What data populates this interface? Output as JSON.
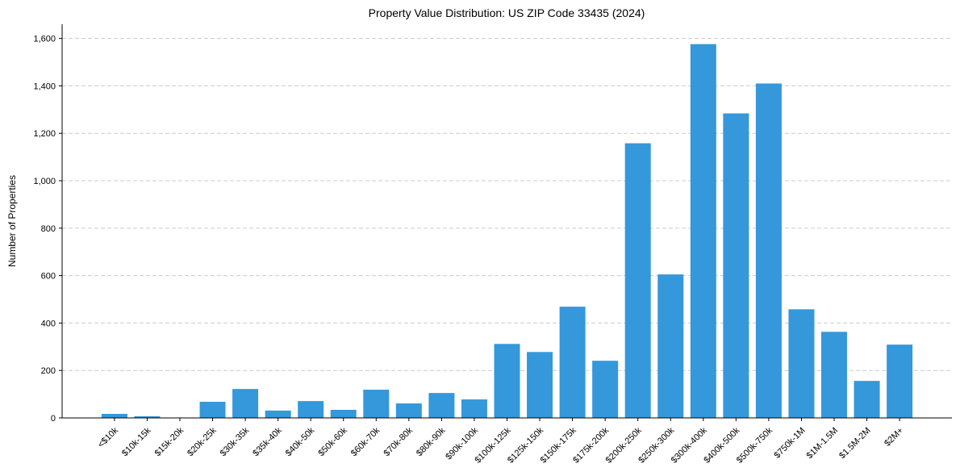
{
  "chart_data": {
    "type": "bar",
    "title": "Property Value Distribution: US ZIP Code 33435 (2024)",
    "xlabel": "",
    "ylabel": "Number of Properties",
    "ylim": [
      0,
      1660
    ],
    "yticks": [
      0,
      200,
      400,
      600,
      800,
      1000,
      1200,
      1400,
      1600
    ],
    "ytick_labels": [
      "0",
      "200",
      "400",
      "600",
      "800",
      "1,000",
      "1,200",
      "1,400",
      "1,600"
    ],
    "grid": "y-dashed",
    "bar_color": "#3498db",
    "categories": [
      "<$10k",
      "$10k-15k",
      "$15k-20k",
      "$20k-25k",
      "$30k-35k",
      "$35k-40k",
      "$40k-50k",
      "$50k-60k",
      "$60k-70k",
      "$70k-80k",
      "$80k-90k",
      "$90k-100k",
      "$100k-125k",
      "$125k-150k",
      "$150k-175k",
      "$175k-200k",
      "$200k-250k",
      "$250k-300k",
      "$300k-400k",
      "$400k-500k",
      "$500k-750k",
      "$750k-1M",
      "$1M-1.5M",
      "$1.5M-2M",
      "$2M+"
    ],
    "values": [
      17,
      7,
      0,
      68,
      122,
      31,
      71,
      34,
      119,
      61,
      105,
      78,
      312,
      278,
      469,
      241,
      1158,
      605,
      1576,
      1284,
      1410,
      458,
      363,
      156,
      309
    ]
  }
}
